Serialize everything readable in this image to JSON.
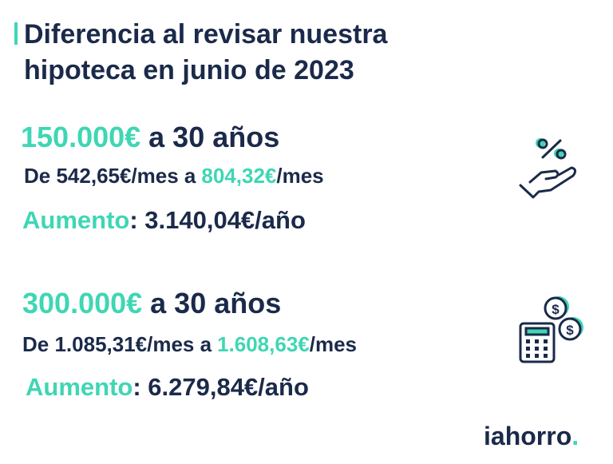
{
  "header": {
    "title_lines": [
      "Diferencia al revisar nuestra",
      "hipoteca en junio de 2023"
    ]
  },
  "blocks": [
    {
      "amount": "150.000€",
      "term": "a 30 años",
      "from_text": "De 542,65€/mes a",
      "to_amount": "804,32€",
      "to_unit": "/mes",
      "increase_label": "Aumento",
      "increase_value": ": 3.140,04€/año"
    },
    {
      "amount": "300.000€",
      "term": "a 30 años",
      "from_text": "De 1.085,31€/mes a",
      "to_amount": "1.608,63€",
      "to_unit": "/mes",
      "increase_label": "Aumento",
      "increase_value": ": 6.279,84€/año"
    }
  ],
  "logo": {
    "name": "iahorro",
    "dot": "."
  }
}
